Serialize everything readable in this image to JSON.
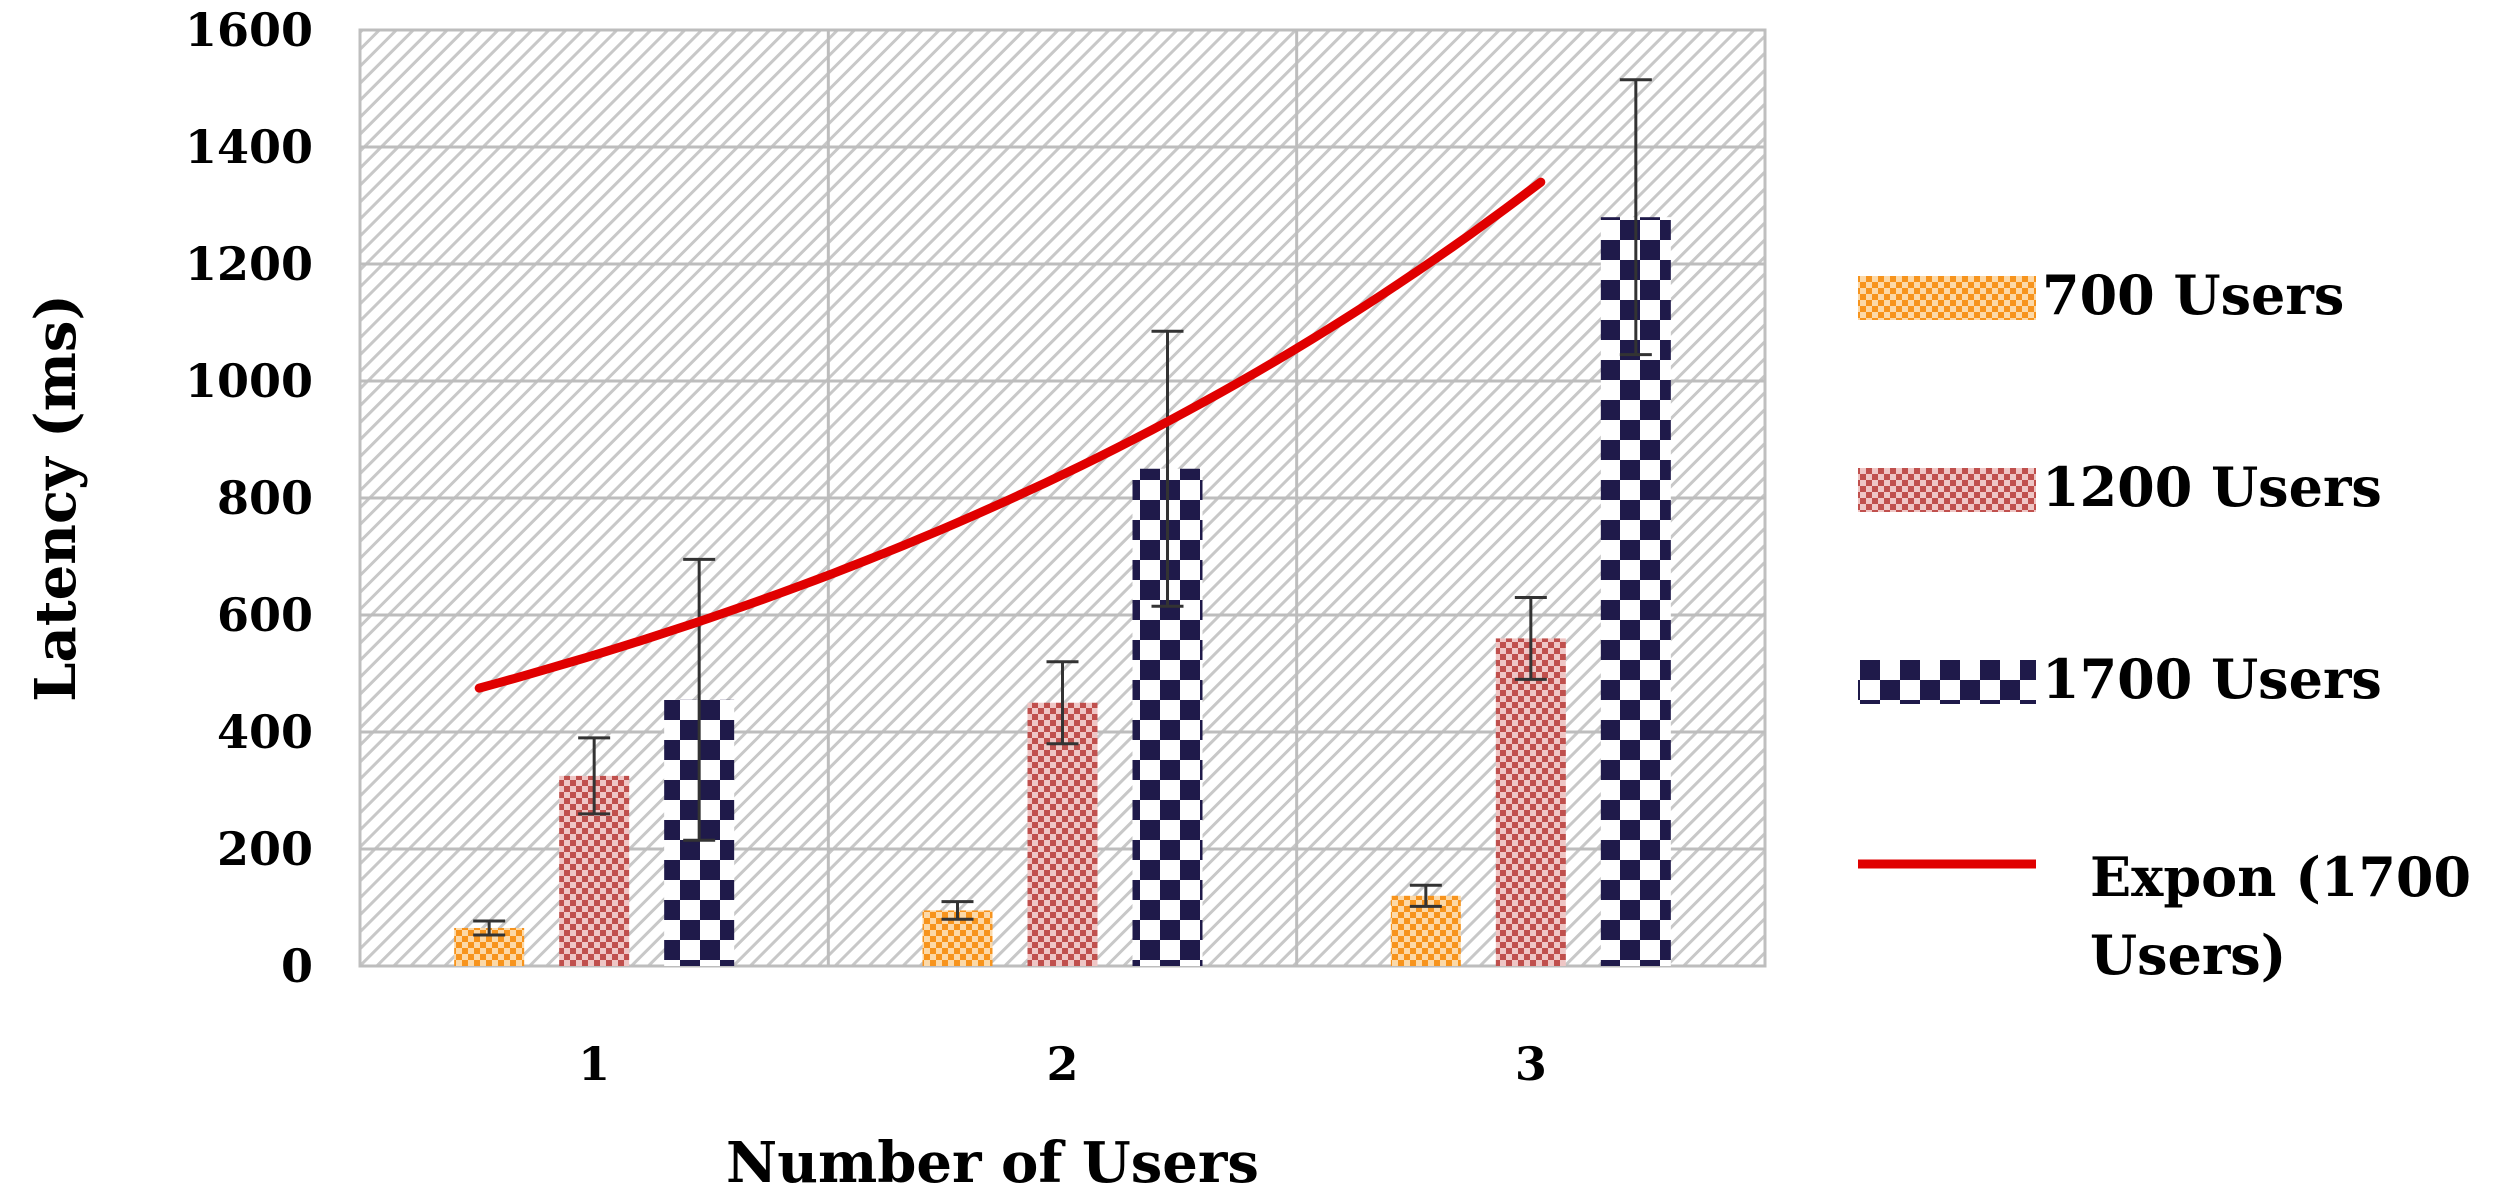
{
  "chart_data": {
    "type": "bar",
    "xlabel": "Number of Users",
    "ylabel": "Latency (ms)",
    "categories": [
      "1",
      "2",
      "3"
    ],
    "ylim": [
      0,
      1600
    ],
    "yticks": [
      0,
      200,
      400,
      600,
      800,
      1000,
      1200,
      1400,
      1600
    ],
    "grid": true,
    "legend_position": "right",
    "series": [
      {
        "name": "700 Users",
        "values": [
          65,
          95,
          120
        ],
        "errors": [
          12,
          15,
          18
        ],
        "color": "#F7941D",
        "pattern": "small-checker"
      },
      {
        "name": "1200 Users",
        "values": [
          325,
          450,
          560
        ],
        "errors": [
          65,
          70,
          70
        ],
        "color": "#C0504D",
        "pattern": "small-checker"
      },
      {
        "name": "1700 Users",
        "values": [
          455,
          850,
          1280
        ],
        "errors": [
          240,
          235,
          235
        ],
        "color": "#1F1A4A",
        "pattern": "large-checker"
      }
    ],
    "trendline": {
      "name": "Expon (1700 Users)",
      "series": "1700 Users",
      "type": "exponential",
      "start_value": 475,
      "end_value": 1340,
      "color": "#E00000"
    }
  }
}
